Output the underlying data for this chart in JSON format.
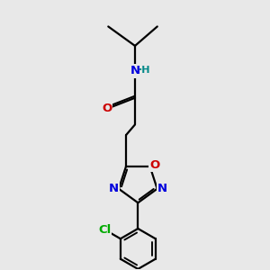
{
  "background_color": "#e8e8e8",
  "bond_color": "#000000",
  "bond_width": 1.6,
  "atom_colors": {
    "N": "#0000dd",
    "O": "#cc0000",
    "Cl": "#00aa00",
    "H": "#008888",
    "C": "#000000"
  },
  "font_size": 9.5
}
